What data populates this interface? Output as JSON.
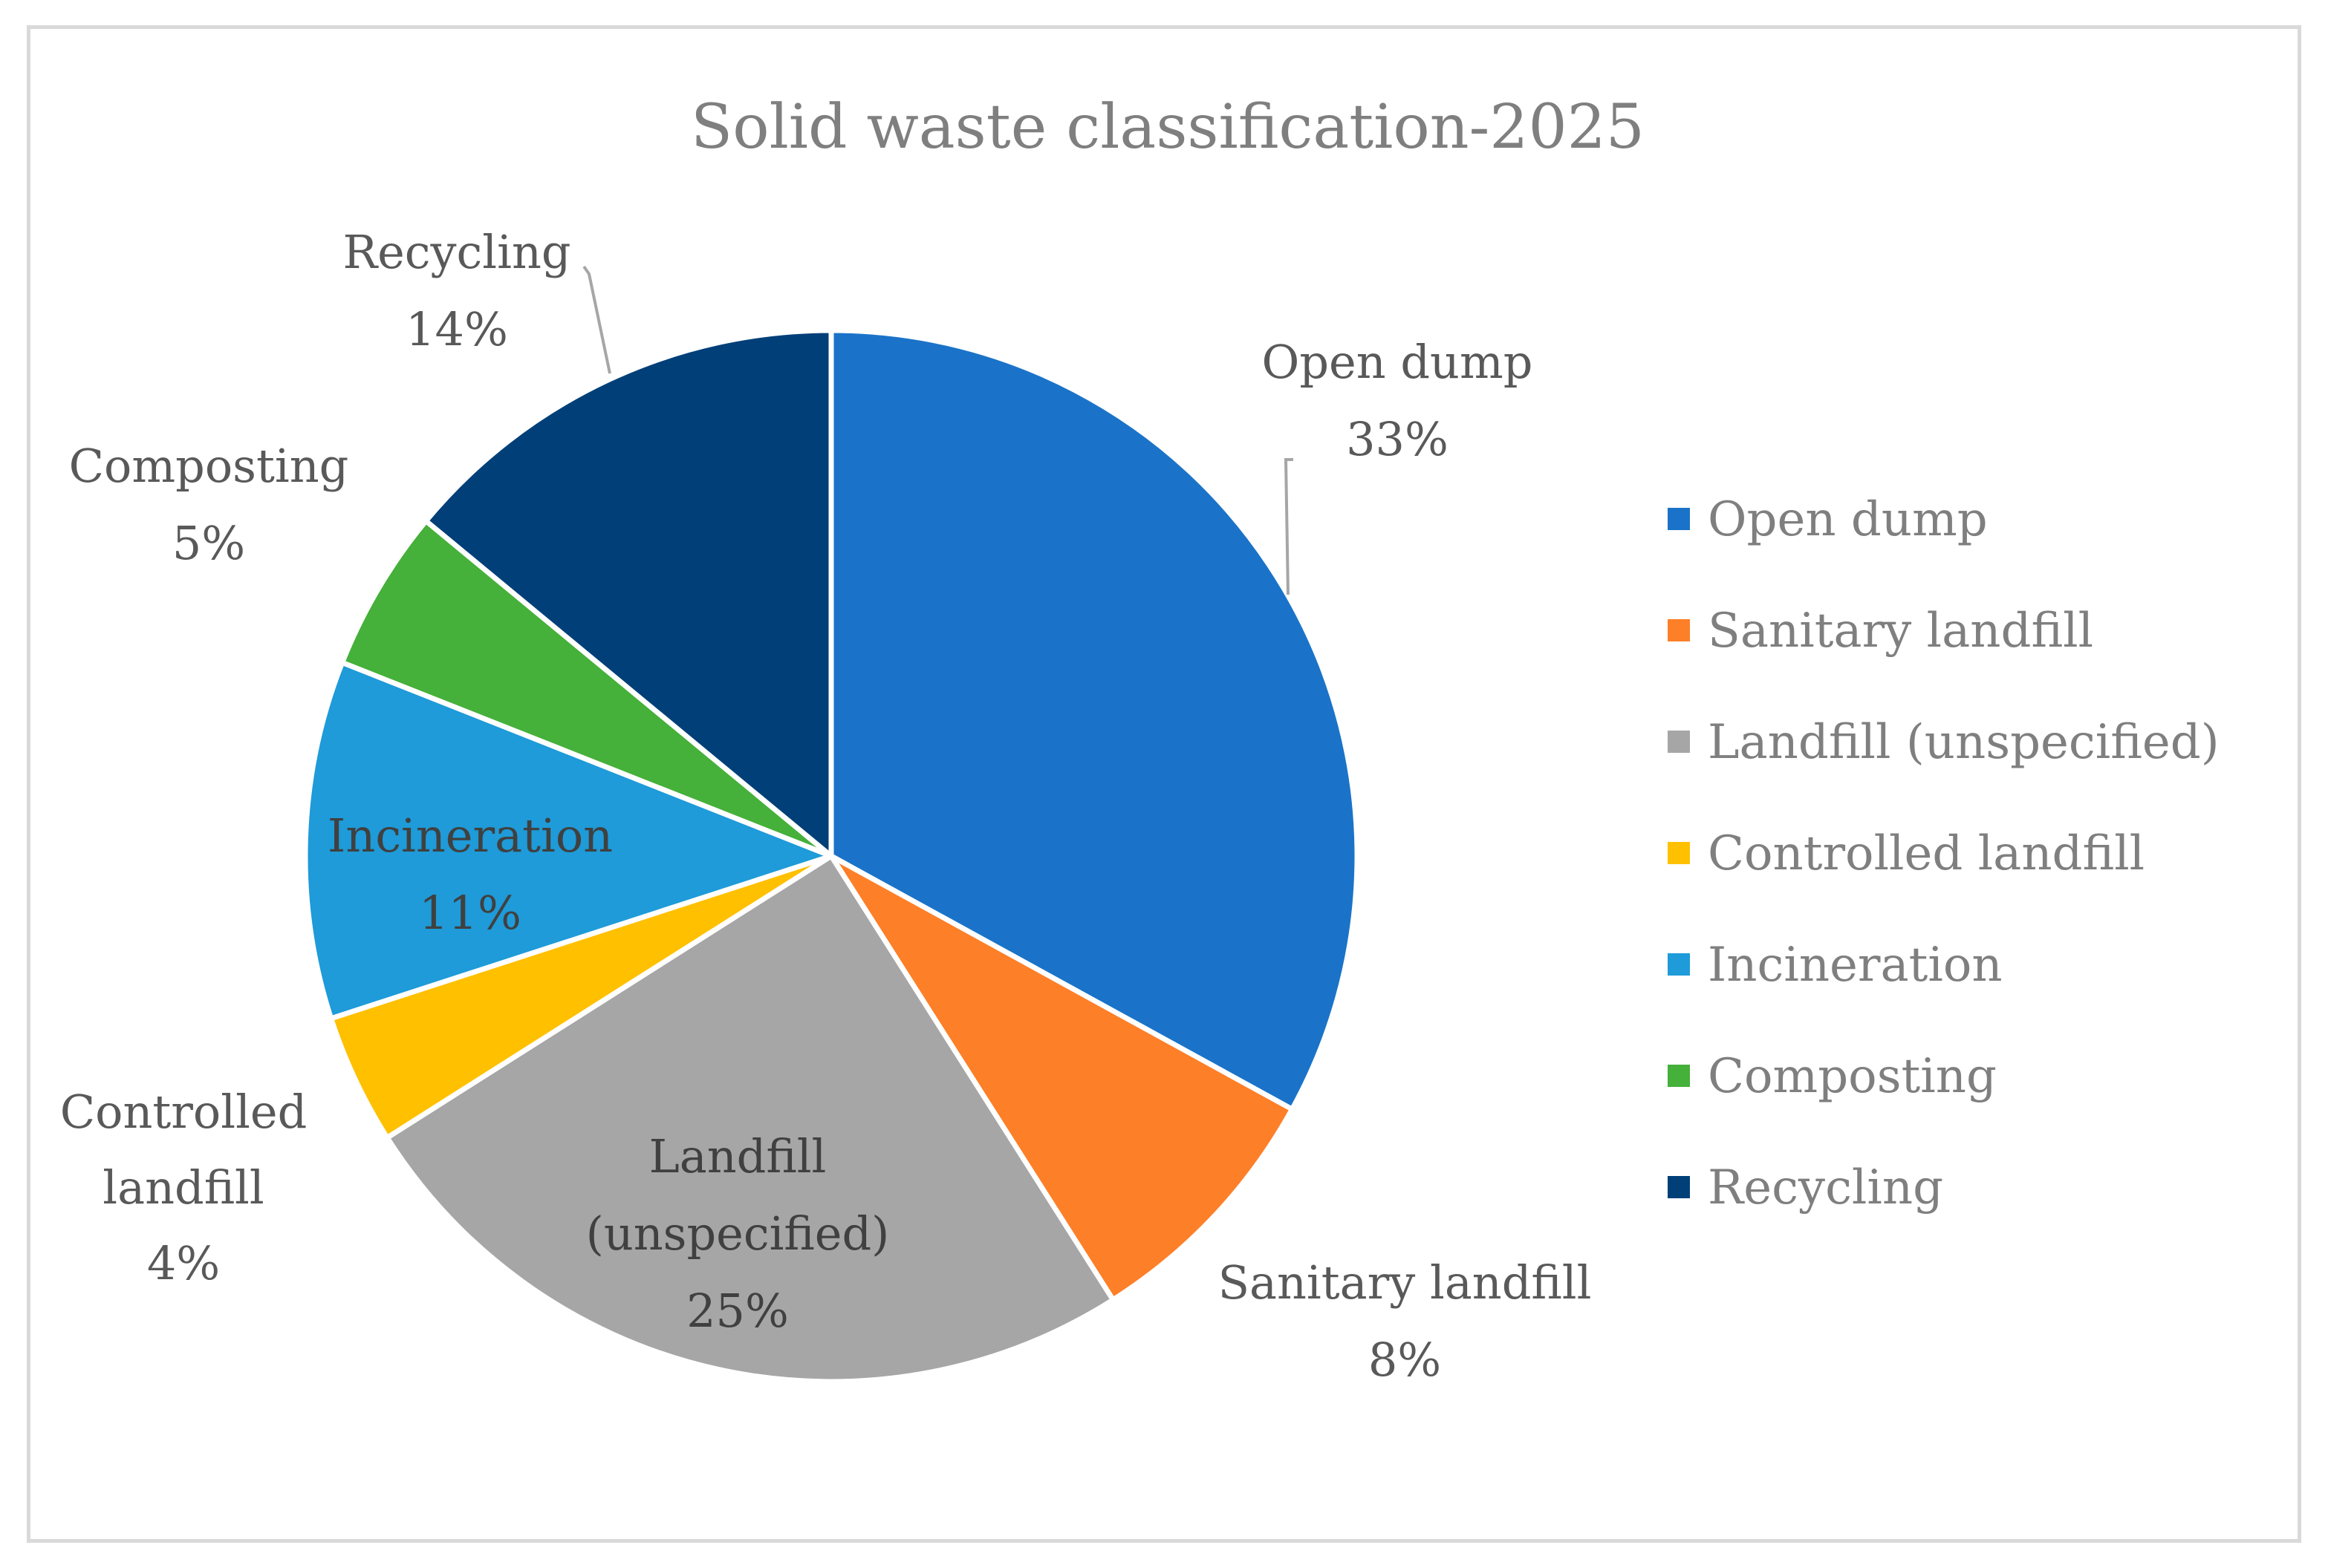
{
  "chart_data": {
    "type": "pie",
    "title": "Solid waste classification-2025",
    "categories": [
      "Open dump",
      "Sanitary landfill",
      "Landfill (unspecified)",
      "Controlled landfill",
      "Incineration",
      "Composting",
      "Recycling"
    ],
    "values": [
      33,
      8,
      25,
      4,
      11,
      5,
      14
    ],
    "unit": "%",
    "colors": [
      "#1a73c8",
      "#fd7f28",
      "#a6a6a6",
      "#ffc000",
      "#1e9bd8",
      "#45b03a",
      "#003f78"
    ],
    "data_labels": [
      {
        "lines": [
          "Open dump",
          "33%"
        ]
      },
      {
        "lines": [
          "Sanitary landfill",
          "8%"
        ]
      },
      {
        "lines": [
          "Landfill",
          "(unspecified)",
          "25%"
        ]
      },
      {
        "lines": [
          "Controlled",
          "landfill",
          "4%"
        ]
      },
      {
        "lines": [
          "Incineration",
          "11%"
        ]
      },
      {
        "lines": [
          "Composting",
          "5%"
        ]
      },
      {
        "lines": [
          "Recycling",
          "14%"
        ]
      }
    ],
    "legend_position": "right"
  }
}
